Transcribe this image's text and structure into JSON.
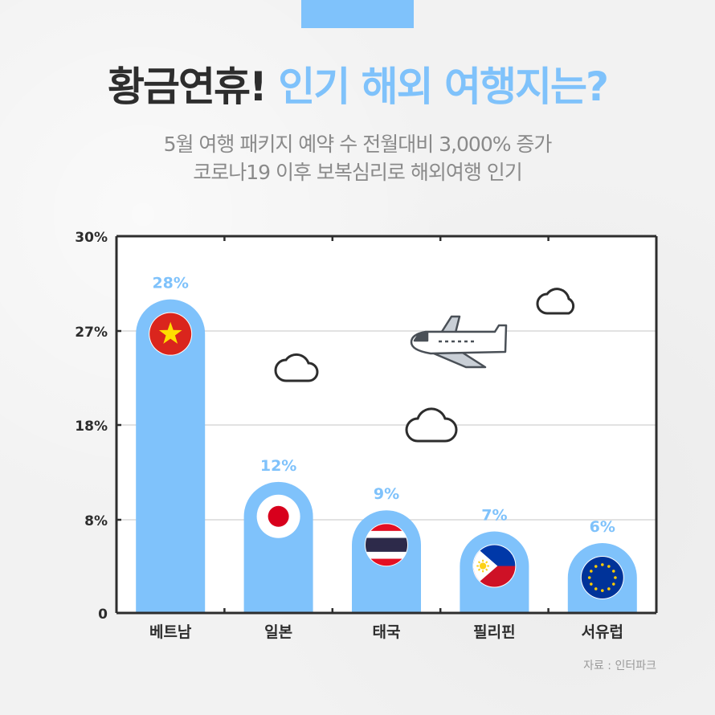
{
  "header": {
    "title_dark": "황금연휴!",
    "title_blue": "인기 해외 여행지는?",
    "subtitle_line1": "5월 여행 패키지 예약 수 전월대비 3,000% 증가",
    "subtitle_line2": "코로나19 이후 보복심리로 해외여행 인기"
  },
  "source": "자료 : 인터파크",
  "colors": {
    "accent": "#7fc2fb",
    "dark": "#2d2d2d",
    "grid": "#d9d9d9"
  },
  "chart_data": {
    "type": "bar",
    "categories": [
      "베트남",
      "일본",
      "태국",
      "필리핀",
      "서유럽"
    ],
    "values": [
      28,
      12,
      9,
      7,
      6
    ],
    "data_labels": [
      "28%",
      "12%",
      "9%",
      "7%",
      "6%"
    ],
    "flags": [
      "vietnam-flag-icon",
      "japan-flag-icon",
      "thailand-flag-icon",
      "philippines-flag-icon",
      "eu-flag-icon"
    ],
    "yticks": [
      {
        "label": "0",
        "value": 0
      },
      {
        "label": "8%",
        "value": 8
      },
      {
        "label": "18%",
        "value": 18
      },
      {
        "label": "27%",
        "value": 27
      },
      {
        "label": "30%",
        "value": 30
      }
    ],
    "ylim": [
      0,
      30
    ],
    "grid": true,
    "title": "",
    "xlabel": "",
    "ylabel": ""
  }
}
